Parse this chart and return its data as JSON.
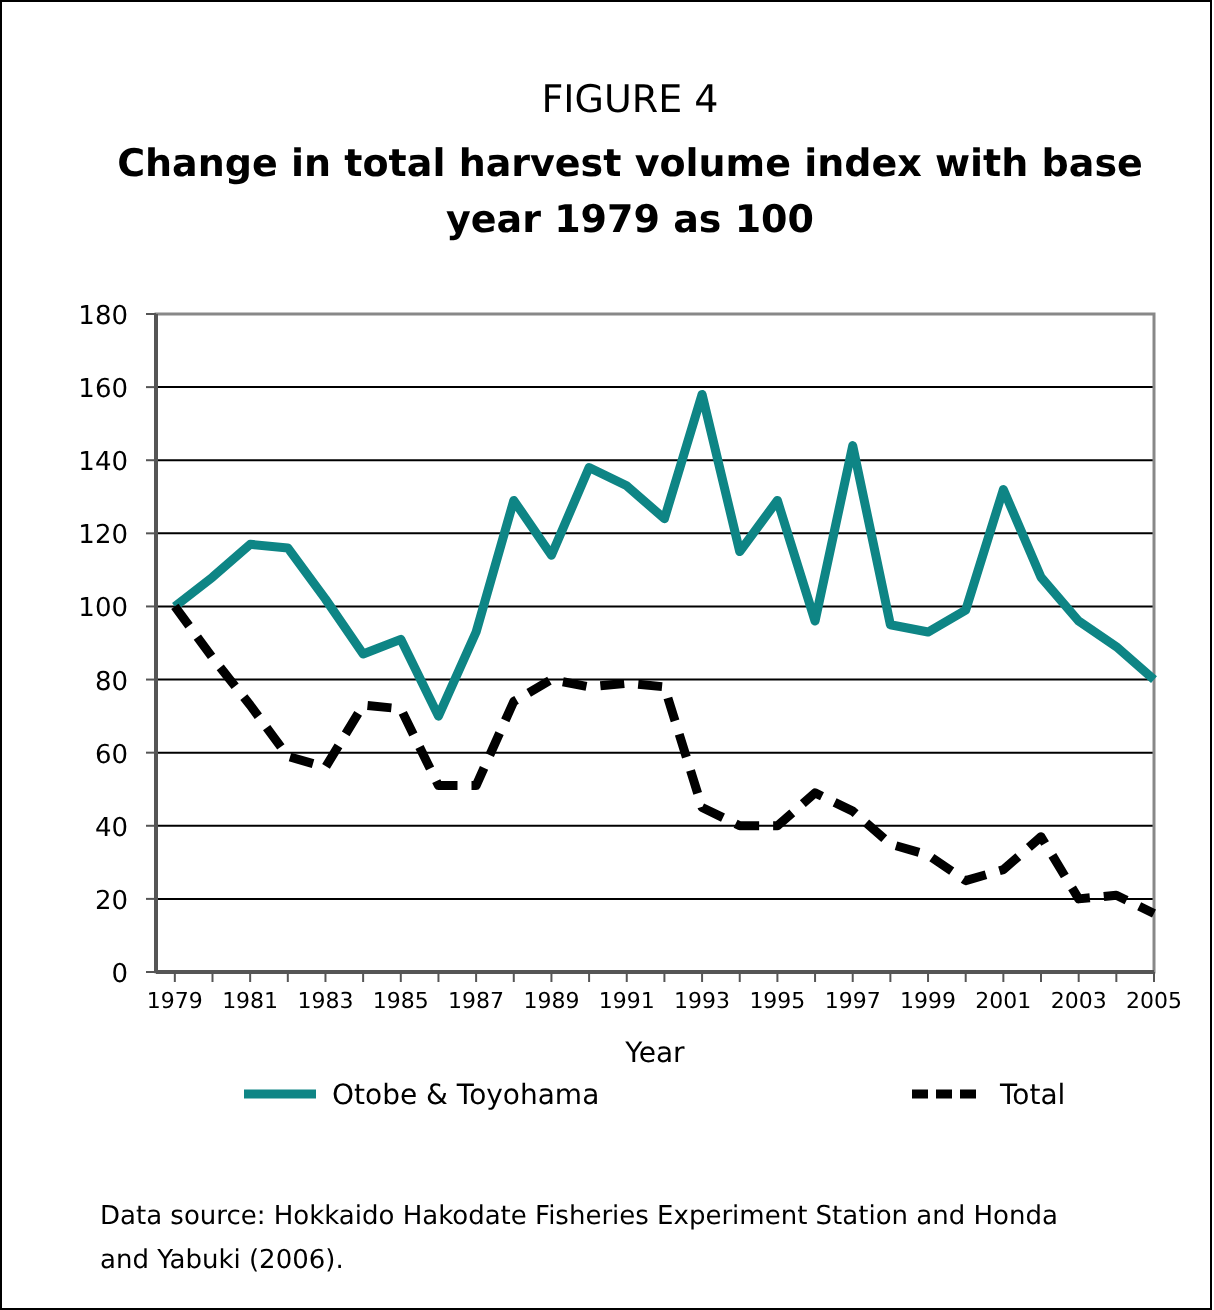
{
  "chart_data": {
    "type": "line",
    "title": "FIGURE 4",
    "subtitle": "Change in total harvest volume index with base year 1979 as 100",
    "xlabel": "Year",
    "x": [
      1979,
      1980,
      1981,
      1982,
      1983,
      1984,
      1985,
      1986,
      1987,
      1988,
      1989,
      1990,
      1991,
      1992,
      1993,
      1994,
      1995,
      1996,
      1997,
      1998,
      1999,
      2000,
      2001,
      2002,
      2003,
      2004,
      2005
    ],
    "series": [
      {
        "name": "Otobe & Toyohama",
        "color": "#0e8585",
        "line_style": "solid",
        "values": [
          100,
          108,
          117,
          116,
          102,
          87,
          91,
          70,
          93,
          129,
          114,
          138,
          133,
          124,
          158,
          115,
          129,
          96,
          144,
          95,
          93,
          99,
          132,
          108,
          96,
          89,
          80
        ]
      },
      {
        "name": "Total",
        "color": "#000000",
        "line_style": "dashed",
        "values": [
          100,
          86,
          73,
          59,
          56,
          73,
          72,
          51,
          51,
          74,
          80,
          78,
          79,
          78,
          45,
          40,
          40,
          49,
          44,
          35,
          32,
          25,
          28,
          37,
          20,
          21,
          16
        ]
      }
    ],
    "xlim": [
      1978.5,
      2005
    ],
    "xticks": [
      1979,
      {
        "value": 1980,
        "label": null
      },
      1981,
      {
        "value": 1982,
        "label": null
      },
      1983,
      {
        "value": 1984,
        "label": null
      },
      1985,
      {
        "value": 1986,
        "label": null
      },
      1987,
      {
        "value": 1988,
        "label": null
      },
      1989,
      {
        "value": 1990,
        "label": null
      },
      1991,
      {
        "value": 1992,
        "label": null
      },
      1993,
      {
        "value": 1994,
        "label": null
      },
      1995,
      {
        "value": 1996,
        "label": null
      },
      1997,
      {
        "value": 1998,
        "label": null
      },
      1999,
      {
        "value": 2000,
        "label": null
      },
      2001,
      {
        "value": 2002,
        "label": null
      },
      2003,
      {
        "value": 2004,
        "label": null
      },
      2005
    ],
    "ylim": [
      0,
      180
    ],
    "yticks": [
      0,
      20,
      40,
      60,
      80,
      100,
      120,
      140,
      160,
      180
    ],
    "grid": "y",
    "legend": "bottom",
    "marker": "none",
    "annotations": [
      "Data source: Hokkaido Hakodate Fisheries Experiment Station and Honda and Yabuki (2006)."
    ]
  }
}
